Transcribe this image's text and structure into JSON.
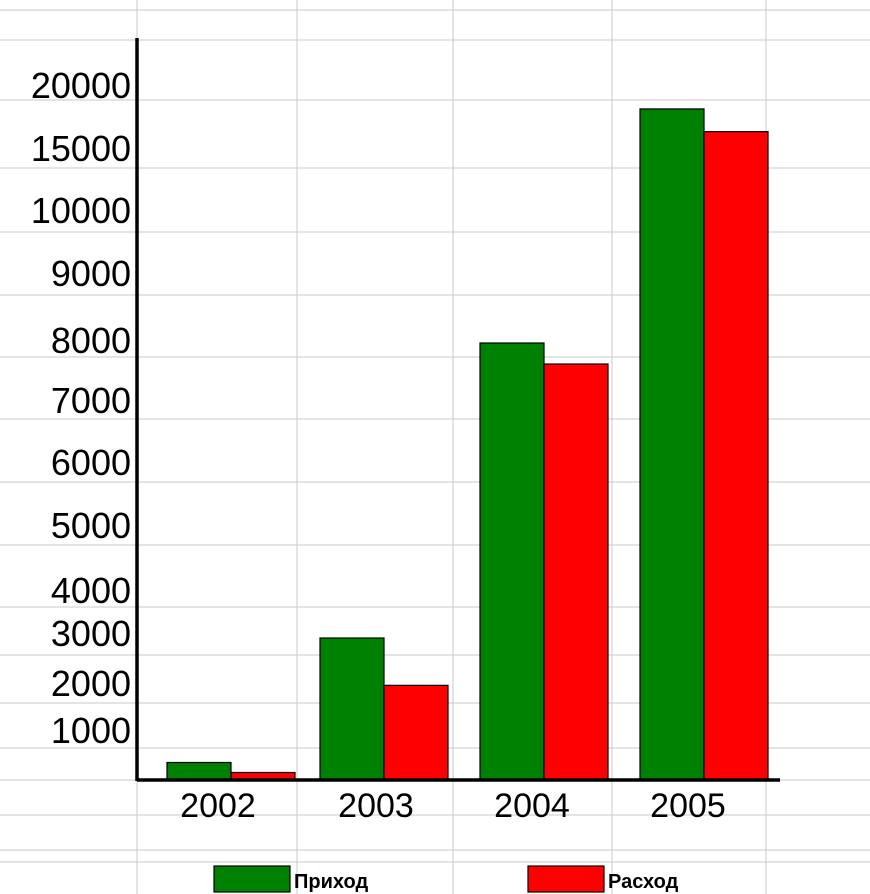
{
  "chart_data": {
    "type": "bar",
    "categories": [
      "2002",
      "2003",
      "2004",
      "2005"
    ],
    "series": [
      {
        "name": "Приход",
        "color": "#008000",
        "values": [
          350,
          2900,
          7950,
          18100
        ]
      },
      {
        "name": "Расход",
        "color": "#ff0000",
        "values": [
          150,
          1950,
          7600,
          16300
        ]
      }
    ],
    "y_ticks": [
      "1000",
      "2000",
      "3000",
      "4000",
      "5000",
      "6000",
      "7000",
      "8000",
      "9000",
      "10000",
      "15000",
      "20000"
    ],
    "legend_position": "bottom",
    "grid": true,
    "ylim": [
      0,
      20000
    ]
  }
}
